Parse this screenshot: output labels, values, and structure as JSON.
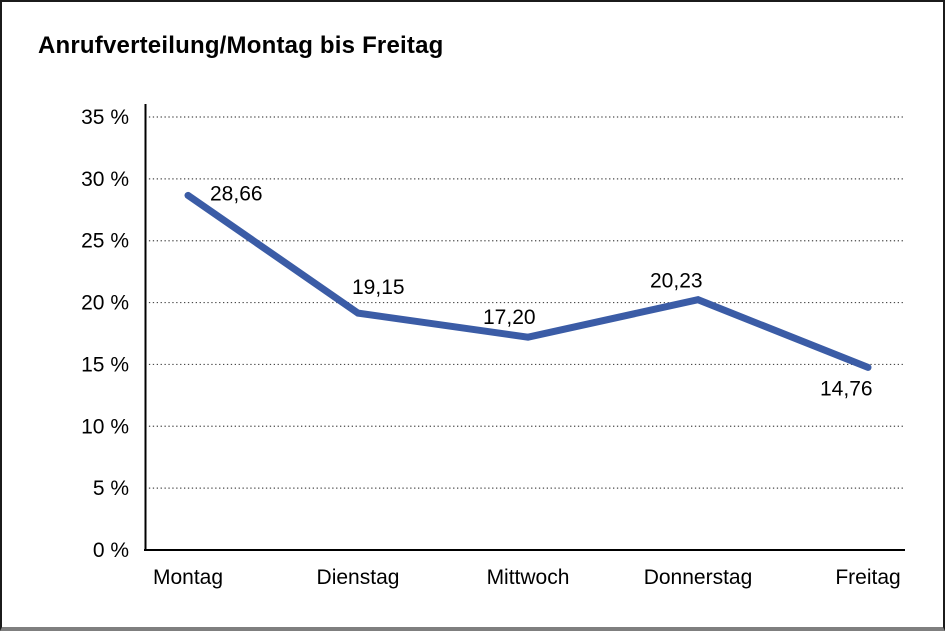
{
  "chart_data": {
    "type": "line",
    "title": "Anrufverteilung/Montag bis Freitag",
    "categories": [
      "Montag",
      "Dienstag",
      "Mittwoch",
      "Donnerstag",
      "Freitag"
    ],
    "series": [
      {
        "name": "Anrufverteilung",
        "values": [
          28.66,
          19.15,
          17.2,
          20.23,
          14.76
        ],
        "point_labels": [
          "28,66",
          "19,15",
          "17,20",
          "20,23",
          "14,76"
        ]
      }
    ],
    "xlabel": "",
    "ylabel": "",
    "ylim": [
      0,
      35
    ],
    "ytick_step": 5,
    "ytick_suffix": " %",
    "ytick_labels": [
      "0 %",
      "5 %",
      "10 %",
      "15 %",
      "20 %",
      "25 %",
      "30 %",
      "35 %"
    ],
    "grid": "horizontal-dotted",
    "legend_position": "none",
    "colors": {
      "line": "#3B5CA6",
      "grid": "#4a4a4a",
      "axis": "#000000",
      "text": "#000000",
      "background": "#ffffff",
      "frame_border": "#1b1b1b",
      "frame_border_bottom": "#7f7f7f"
    }
  }
}
